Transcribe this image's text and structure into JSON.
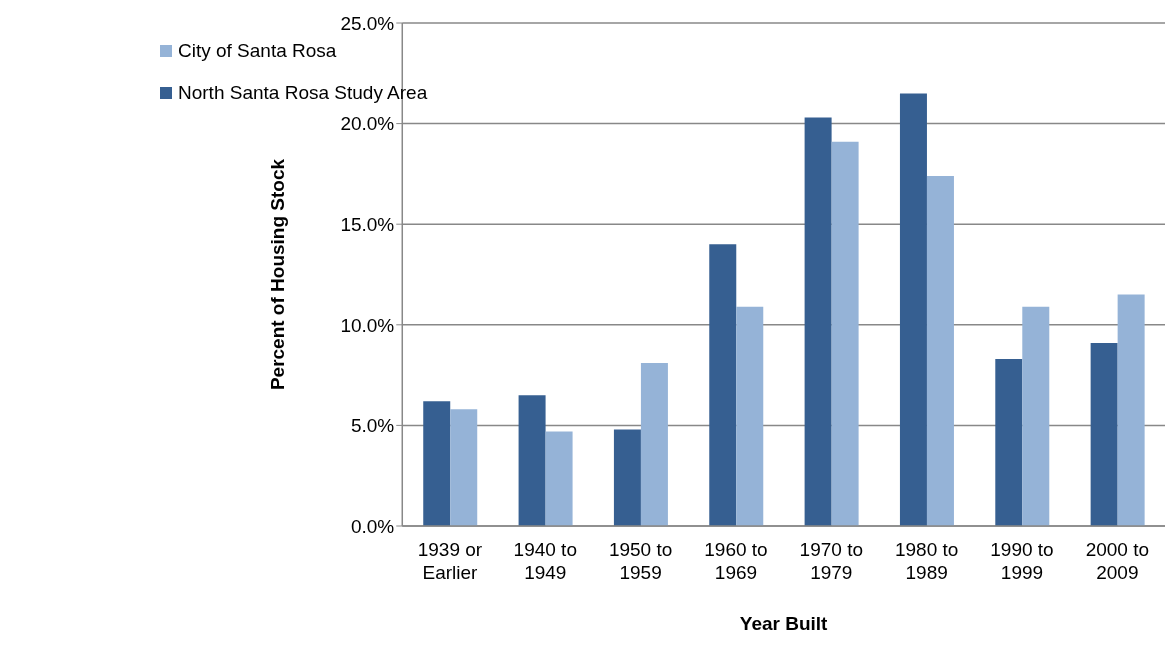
{
  "chart_data": {
    "type": "bar",
    "xlabel": "Year Built",
    "ylabel": "Percent of Housing Stock",
    "categories": [
      "1939 or Earlier",
      "1940 to 1949",
      "1950 to 1959",
      "1960 to 1969",
      "1970 to 1979",
      "1980 to 1989",
      "1990 to 1999",
      "2000 to 2009"
    ],
    "series": [
      {
        "name": "North Santa Rosa Study Area",
        "color": "#365f91",
        "values": [
          6.2,
          6.5,
          4.8,
          14.0,
          20.3,
          21.5,
          8.3,
          9.1
        ]
      },
      {
        "name": "City of Santa Rosa",
        "color": "#95b3d7",
        "values": [
          5.8,
          4.7,
          8.1,
          10.9,
          19.1,
          17.4,
          10.9,
          11.5
        ]
      }
    ],
    "ylim": [
      0,
      25
    ],
    "yticks": [
      {
        "value": 0,
        "label": "0.0%"
      },
      {
        "value": 5,
        "label": "5.0%"
      },
      {
        "value": 10,
        "label": "10.0%"
      },
      {
        "value": 15,
        "label": "15.0%"
      },
      {
        "value": 20,
        "label": "20.0%"
      },
      {
        "value": 25,
        "label": "25.0%"
      }
    ],
    "grid": "y",
    "legend": "top left"
  }
}
